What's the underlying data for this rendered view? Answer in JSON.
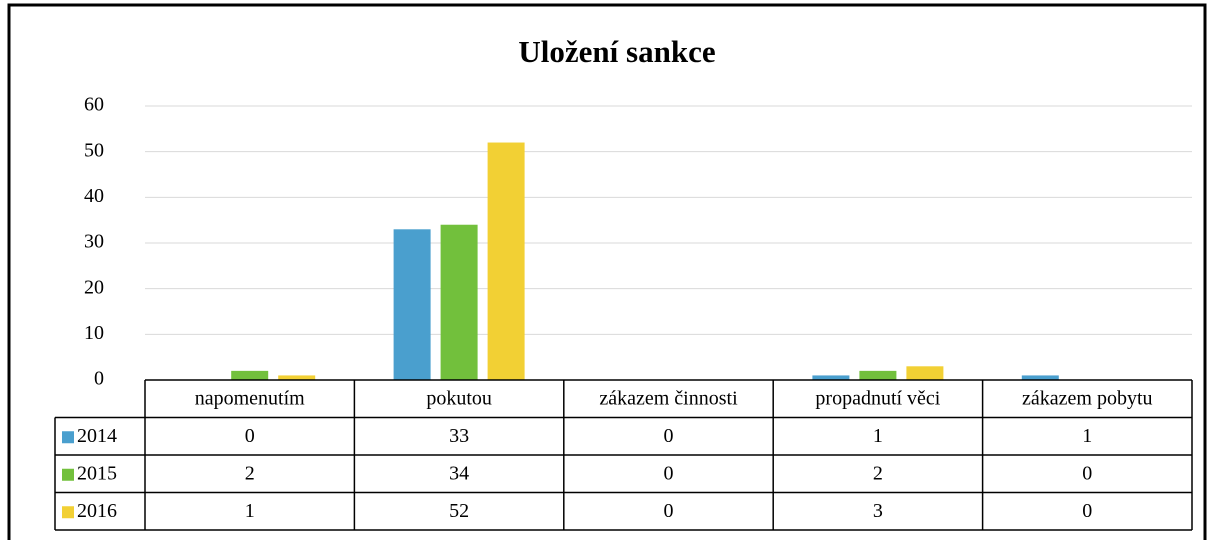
{
  "chart_data": {
    "type": "bar",
    "title": "Uložení sankce",
    "categories": [
      "napomenutím",
      "pokutou",
      "zákazem činnosti",
      "propadnutí věci",
      "zákazem pobytu"
    ],
    "series": [
      {
        "name": "2014",
        "color": "#4a9fce",
        "values": [
          0,
          33,
          0,
          1,
          1
        ]
      },
      {
        "name": "2015",
        "color": "#72c03c",
        "values": [
          2,
          34,
          0,
          2,
          0
        ]
      },
      {
        "name": "2016",
        "color": "#f2d034",
        "values": [
          1,
          52,
          0,
          3,
          0
        ]
      }
    ],
    "ylim": [
      0,
      60
    ],
    "yticks": [
      0,
      10,
      20,
      30,
      40,
      50,
      60
    ],
    "grid": true
  }
}
